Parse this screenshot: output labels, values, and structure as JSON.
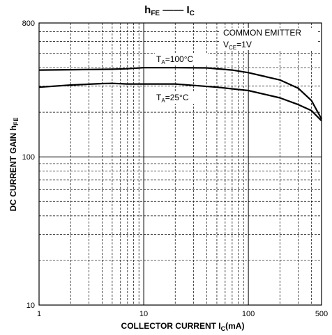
{
  "chart_data": {
    "type": "line",
    "title": {
      "main": "h",
      "main_sub": "FE",
      "sep": "——",
      "second": "I",
      "second_sub": "C"
    },
    "xlabel": {
      "main": "COLLECTOR CURRENT  I",
      "sub": "C",
      "unit": "(mA)"
    },
    "ylabel": {
      "main": "DC CURRENT GAIN  h",
      "sub": "FE"
    },
    "xscale": "log",
    "yscale": "log",
    "xlim": [
      1,
      500
    ],
    "ylim": [
      10,
      800
    ],
    "grid": true,
    "x_ticks": [
      "1",
      "10",
      "100",
      "500"
    ],
    "y_ticks": [
      "800",
      "100",
      "10"
    ],
    "annotation": {
      "line1": "COMMON EMITTER",
      "line2_main": "V",
      "line2_sub": "CE",
      "line2_rest": "=1V"
    },
    "series": [
      {
        "name": "T_A=100°C",
        "label": {
          "main": "T",
          "sub": "A",
          "rest": "=100°C"
        },
        "x": [
          1,
          2,
          5,
          7,
          10,
          20,
          40,
          70,
          100,
          200,
          300,
          400,
          500
        ],
        "y": [
          385,
          387,
          390,
          393,
          400,
          400,
          398,
          385,
          370,
          330,
          290,
          240,
          180
        ]
      },
      {
        "name": "T_A=25°C",
        "label": {
          "main": "T",
          "sub": "A",
          "rest": "=25°C"
        },
        "x": [
          1,
          2,
          4,
          5,
          7,
          10,
          20,
          50,
          100,
          200,
          300,
          400,
          500
        ],
        "y": [
          295,
          305,
          312,
          313,
          310,
          310,
          310,
          295,
          280,
          250,
          225,
          205,
          175
        ]
      }
    ]
  }
}
